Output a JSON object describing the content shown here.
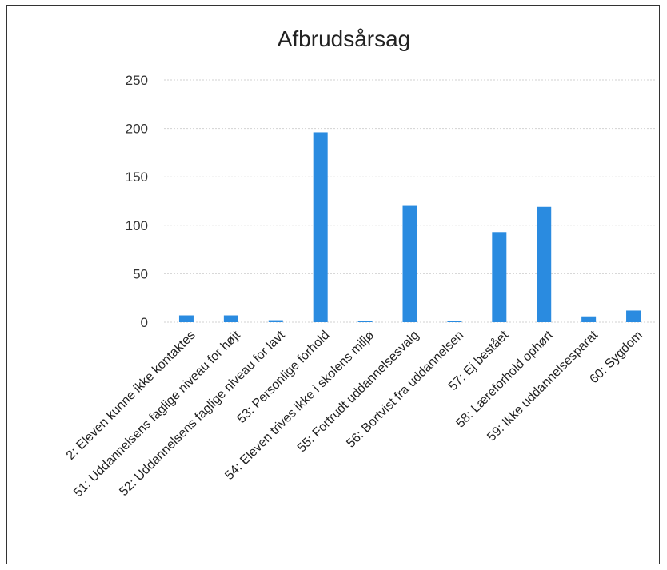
{
  "chart_data": {
    "type": "bar",
    "title": "Afbrudsårsag",
    "categories": [
      "2: Eleven kunne ikke kontaktes",
      "51: Uddannelsens faglige niveau for højt",
      "52: Uddannelsens faglige niveau for lavt",
      "53: Personlige forhold",
      "54: Eleven trives ikke i skolens miljø",
      "55: Fortrudt uddannelsesvalg",
      "56: Bortvist fra uddannelsen",
      "57: Ej bestået",
      "58: Læreforhold ophørt",
      "59: Ikke uddannelsesparat",
      "60: Sygdom"
    ],
    "values": [
      7,
      7,
      2,
      196,
      1,
      120,
      1,
      93,
      119,
      6,
      12
    ],
    "ylim": [
      0,
      250
    ],
    "yticks": [
      0,
      50,
      100,
      150,
      200,
      250
    ],
    "grid": true,
    "legend": "none",
    "bar_color": "#2a8be0"
  }
}
